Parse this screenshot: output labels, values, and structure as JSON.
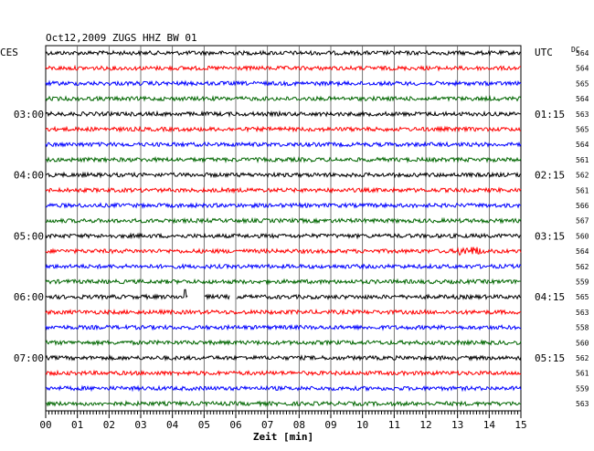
{
  "chart_data": {
    "type": "line",
    "title": "Oct12,2009   ZUGS HHZ BW 01",
    "left_timezone": "CES",
    "right_timezone": "UTC",
    "dc_label": "DC",
    "xlabel": "Zeit [min]",
    "xlim": [
      0,
      15
    ],
    "x_ticks": [
      "00",
      "01",
      "02",
      "03",
      "04",
      "05",
      "06",
      "07",
      "08",
      "09",
      "10",
      "11",
      "12",
      "13",
      "14",
      "15"
    ],
    "left_hour_labels": [
      {
        "trace": 4,
        "label": "03:00"
      },
      {
        "trace": 8,
        "label": "04:00"
      },
      {
        "trace": 12,
        "label": "05:00"
      },
      {
        "trace": 16,
        "label": "06:00"
      },
      {
        "trace": 20,
        "label": "07:00"
      }
    ],
    "right_hour_labels": [
      {
        "trace": 4,
        "label": "01:15"
      },
      {
        "trace": 8,
        "label": "02:15"
      },
      {
        "trace": 12,
        "label": "03:15"
      },
      {
        "trace": 16,
        "label": "04:15"
      },
      {
        "trace": 20,
        "label": "05:15"
      }
    ],
    "dc_offsets": [
      564,
      564,
      565,
      564,
      563,
      565,
      564,
      561,
      562,
      561,
      566,
      567,
      560,
      564,
      562,
      559,
      565,
      563,
      558,
      560,
      562,
      561,
      559,
      563
    ],
    "trace_colors": [
      "#000000",
      "#ff0000",
      "#0000ff",
      "#006600"
    ],
    "grid": true,
    "events": [
      {
        "trace": 13,
        "type": "burst",
        "from_min": 13.0,
        "to_min": 13.8
      },
      {
        "trace": 16,
        "type": "gap",
        "from_min": 4.5,
        "to_min": 5.0
      },
      {
        "trace": 16,
        "type": "gap",
        "from_min": 5.8,
        "to_min": 6.0
      },
      {
        "trace": 16,
        "type": "spike",
        "at_min": 4.4
      }
    ]
  }
}
